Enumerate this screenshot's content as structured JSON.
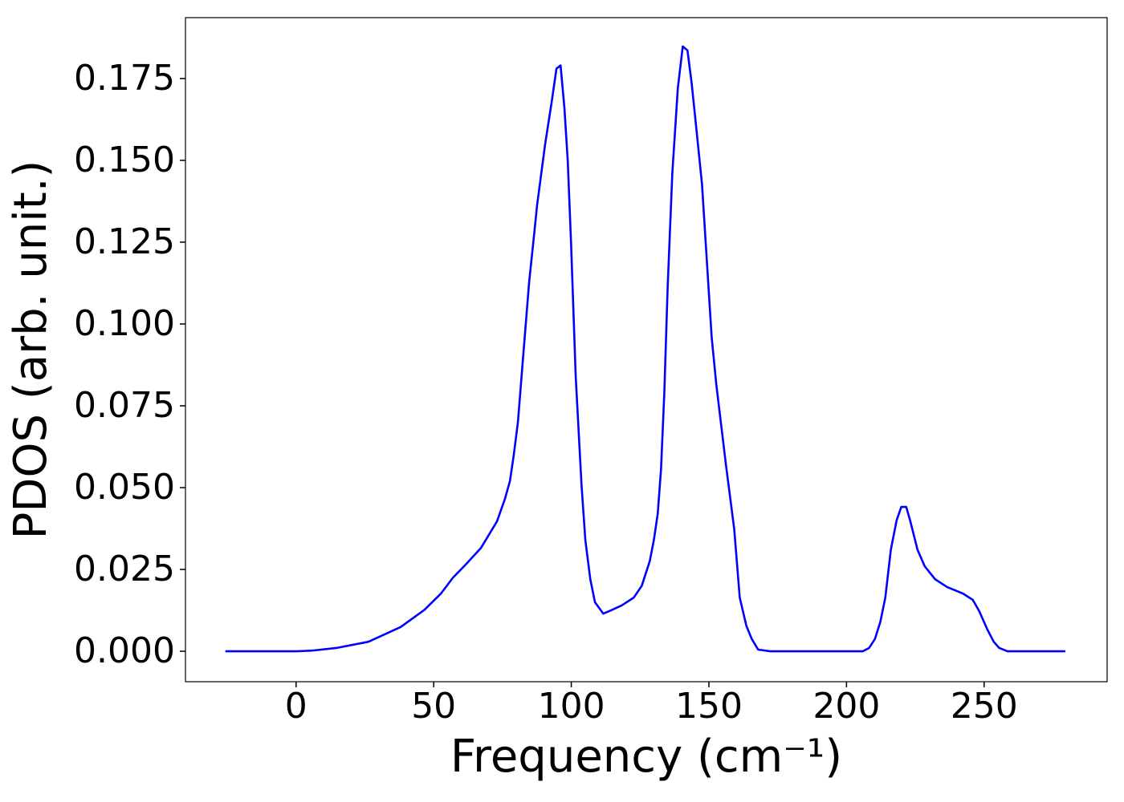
{
  "chart_data": {
    "type": "line",
    "x_label": "Frequency (cm⁻¹)",
    "y_label": "PDOS (arb. unit.)",
    "xlim": [
      -40.2,
      294.7
    ],
    "ylim": [
      -0.0093,
      0.1936
    ],
    "xticks": [
      0,
      50,
      100,
      150,
      200,
      250
    ],
    "yticks": [
      {
        "value": 0,
        "label": "0.000"
      },
      {
        "value": 0.025,
        "label": "0.025"
      },
      {
        "value": 0.05,
        "label": "0.050"
      },
      {
        "value": 0.075,
        "label": "0.075"
      },
      {
        "value": 0.1,
        "label": "0.100"
      },
      {
        "value": 0.125,
        "label": "0.125"
      },
      {
        "value": 0.15,
        "label": "0.150"
      },
      {
        "value": 0.175,
        "label": "0.175"
      }
    ],
    "grid": false,
    "series": [
      {
        "color": "#0000ff",
        "x": [
          -25.7,
          0,
          5.8,
          14.6,
          26.3,
          38.0,
          46.7,
          52.6,
          57.0,
          61.3,
          67.2,
          73.0,
          75.9,
          77.7,
          79.1,
          80.6,
          82.4,
          84.7,
          86.2,
          87.6,
          90.5,
          92.9,
          94.6,
          96.1,
          97.5,
          98.7,
          99.9,
          101.6,
          103.7,
          105.1,
          106.9,
          108.6,
          111.6,
          113.9,
          118.3,
          122.7,
          125.6,
          128.5,
          130.0,
          131.4,
          132.6,
          133.8,
          135.0,
          136.7,
          138.7,
          140.5,
          142.2,
          143.7,
          145.4,
          147.5,
          151.0,
          152.7,
          156.2,
          159.2,
          161.2,
          163.6,
          165.6,
          167.9,
          172.3,
          205.9,
          208.2,
          210.3,
          212.3,
          214.1,
          216.1,
          218.2,
          219.9,
          221.7,
          223.1,
          225.8,
          228.4,
          232.2,
          236.6,
          242.4,
          245.9,
          248.2,
          251.2,
          253.5,
          255.5,
          258.5,
          279.5
        ],
        "values": [
          0,
          0,
          0.0002,
          0.001,
          0.0029,
          0.0074,
          0.0127,
          0.0176,
          0.0225,
          0.0262,
          0.0316,
          0.0397,
          0.0466,
          0.052,
          0.06,
          0.07,
          0.089,
          0.113,
          0.125,
          0.1365,
          0.155,
          0.168,
          0.178,
          0.179,
          0.166,
          0.15,
          0.125,
          0.084,
          0.051,
          0.034,
          0.022,
          0.015,
          0.0115,
          0.0123,
          0.014,
          0.0164,
          0.02,
          0.0275,
          0.034,
          0.042,
          0.0556,
          0.079,
          0.111,
          0.146,
          0.172,
          0.1848,
          0.1836,
          0.1738,
          0.16,
          0.1426,
          0.096,
          0.0814,
          0.0569,
          0.0373,
          0.0164,
          0.0078,
          0.0037,
          0.0005,
          0,
          0,
          0.001,
          0.0037,
          0.009,
          0.0164,
          0.031,
          0.04,
          0.0441,
          0.0441,
          0.04,
          0.031,
          0.026,
          0.022,
          0.0196,
          0.0176,
          0.0157,
          0.0123,
          0.0066,
          0.0029,
          0.001,
          0,
          0
        ]
      }
    ]
  }
}
